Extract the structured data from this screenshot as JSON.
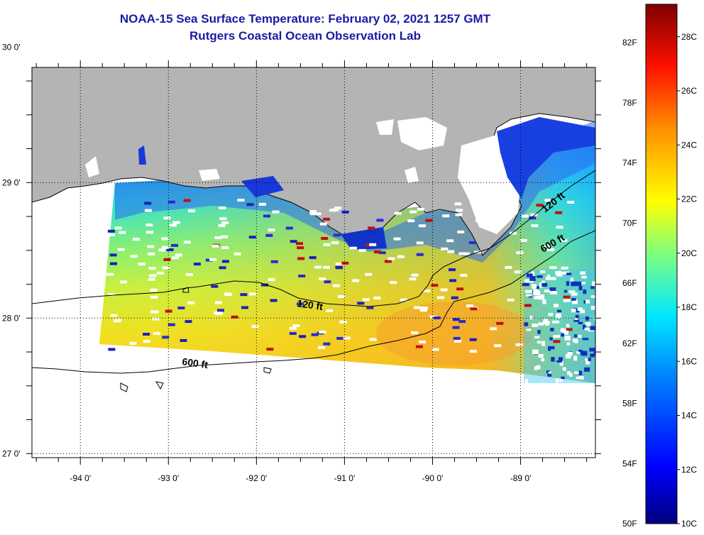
{
  "header": {
    "title": "NOAA-15 Sea Surface Temperature:  February 02, 2021 1257 GMT",
    "subtitle": "Rutgers Coastal Ocean Observation Lab"
  },
  "map": {
    "lon_range": [
      -94.55,
      -88.15
    ],
    "lat_range": [
      26.97,
      29.85
    ],
    "lon_ticks": [
      "-94 0'",
      "-93 0'",
      "-92 0'",
      "-91 0'",
      "-90 0'",
      "-89 0'"
    ],
    "lon_tick_values": [
      -94,
      -93,
      -92,
      -91,
      -90,
      -89
    ],
    "lat_ticks": [
      "30 0'",
      "29 0'",
      "28 0'",
      "27 0'"
    ],
    "lat_tick_values": [
      30,
      29,
      28,
      27
    ],
    "contour_labels": [
      "120 ft",
      "600 ft",
      "120 ft",
      "600 ft"
    ],
    "colors": {
      "land": "#b4b4b4",
      "no_data": "#ffffff",
      "contour": "#000000",
      "grid": "#000000"
    }
  },
  "colorbar": {
    "fahrenheit_labels": [
      "82F",
      "78F",
      "74F",
      "70F",
      "66F",
      "62F",
      "58F",
      "54F",
      "50F"
    ],
    "celsius_labels": [
      "28C",
      "26C",
      "24C",
      "22C",
      "20C",
      "18C",
      "16C",
      "14C",
      "12C",
      "10C"
    ],
    "range_c": [
      10,
      29.2
    ],
    "stops": [
      "#000080",
      "#0000ff",
      "#00a0ff",
      "#00ffff",
      "#7fff7f",
      "#ffff00",
      "#ff8000",
      "#ff0000",
      "#800000"
    ]
  }
}
